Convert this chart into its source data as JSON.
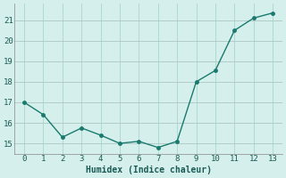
{
  "x": [
    0,
    1,
    2,
    3,
    4,
    5,
    6,
    7,
    8,
    9,
    10,
    11,
    12,
    13
  ],
  "y": [
    17.0,
    16.4,
    15.3,
    15.75,
    15.4,
    15.0,
    15.1,
    14.8,
    15.1,
    18.0,
    18.55,
    20.5,
    21.1,
    21.35
  ],
  "xlabel": "Humidex (Indice chaleur)",
  "xlim": [
    -0.5,
    13.5
  ],
  "ylim": [
    14.5,
    21.8
  ],
  "yticks": [
    15,
    16,
    17,
    18,
    19,
    20,
    21
  ],
  "xticks": [
    0,
    1,
    2,
    3,
    4,
    5,
    6,
    7,
    8,
    9,
    10,
    11,
    12,
    13
  ],
  "line_color": "#1a7a6e",
  "marker_color": "#1a7a6e",
  "bg_color": "#d5f0ec",
  "grid_color_teal": "#a8d5ce",
  "grid_color_pink": "#c8aeb0",
  "spine_color": "#888888"
}
